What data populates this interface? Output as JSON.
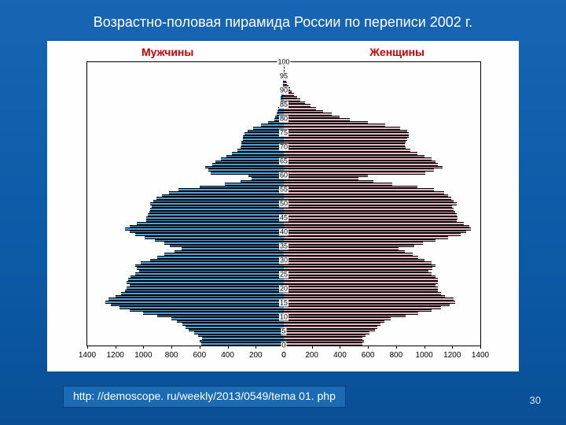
{
  "title": "Возрастно-половая пирамида России по переписи 2002 г.",
  "legend": {
    "male": "Мужчины",
    "female": "Женщины"
  },
  "legend_colors": {
    "male": "#cc0000",
    "female": "#cc0000"
  },
  "source": "http: //demoscope. ru/weekly/2013/0549/tema 01. php",
  "page_number": "30",
  "chart": {
    "type": "population-pyramid",
    "background_color": "#fefefe",
    "male_bar_color": "#4ea3d8",
    "female_bar_color": "#e8b9c2",
    "bar_border_color": "#000000",
    "x_axis": {
      "max": 1400,
      "tick_step": 200,
      "tick_labels_left": [
        "1400",
        "1200",
        "1000",
        "800",
        "600",
        "400",
        "200",
        "0"
      ],
      "tick_labels_right": [
        "0",
        "200",
        "400",
        "600",
        "800",
        "1000",
        "1200",
        "1400"
      ]
    },
    "y_axis": {
      "tick_labels": [
        "0",
        "5",
        "10",
        "15",
        "20",
        "25",
        "30",
        "35",
        "40",
        "45",
        "50",
        "55",
        "60",
        "65",
        "70",
        "75",
        "80",
        "85",
        "90",
        "95",
        "100"
      ]
    },
    "rows": [
      {
        "m": 590,
        "f": 560
      },
      {
        "m": 600,
        "f": 570
      },
      {
        "m": 580,
        "f": 560
      },
      {
        "m": 610,
        "f": 580
      },
      {
        "m": 640,
        "f": 610
      },
      {
        "m": 680,
        "f": 650
      },
      {
        "m": 700,
        "f": 665
      },
      {
        "m": 720,
        "f": 690
      },
      {
        "m": 760,
        "f": 715
      },
      {
        "m": 800,
        "f": 760
      },
      {
        "m": 900,
        "f": 870
      },
      {
        "m": 1000,
        "f": 960
      },
      {
        "m": 1100,
        "f": 1050
      },
      {
        "m": 1170,
        "f": 1120
      },
      {
        "m": 1230,
        "f": 1180
      },
      {
        "m": 1270,
        "f": 1220
      },
      {
        "m": 1250,
        "f": 1210
      },
      {
        "m": 1200,
        "f": 1150
      },
      {
        "m": 1160,
        "f": 1120
      },
      {
        "m": 1130,
        "f": 1100
      },
      {
        "m": 1120,
        "f": 1095
      },
      {
        "m": 1100,
        "f": 1080
      },
      {
        "m": 1120,
        "f": 1100
      },
      {
        "m": 1110,
        "f": 1095
      },
      {
        "m": 1090,
        "f": 1080
      },
      {
        "m": 1060,
        "f": 1055
      },
      {
        "m": 1030,
        "f": 1030
      },
      {
        "m": 1050,
        "f": 1060
      },
      {
        "m": 1060,
        "f": 1080
      },
      {
        "m": 1020,
        "f": 1050
      },
      {
        "m": 950,
        "f": 1000
      },
      {
        "m": 900,
        "f": 960
      },
      {
        "m": 850,
        "f": 920
      },
      {
        "m": 780,
        "f": 860
      },
      {
        "m": 730,
        "f": 820
      },
      {
        "m": 810,
        "f": 930
      },
      {
        "m": 850,
        "f": 990
      },
      {
        "m": 920,
        "f": 1080
      },
      {
        "m": 990,
        "f": 1170
      },
      {
        "m": 1060,
        "f": 1260
      },
      {
        "m": 1100,
        "f": 1300
      },
      {
        "m": 1130,
        "f": 1330
      },
      {
        "m": 1100,
        "f": 1320
      },
      {
        "m": 1050,
        "f": 1280
      },
      {
        "m": 980,
        "f": 1230
      },
      {
        "m": 980,
        "f": 1240
      },
      {
        "m": 970,
        "f": 1230
      },
      {
        "m": 960,
        "f": 1220
      },
      {
        "m": 950,
        "f": 1210
      },
      {
        "m": 940,
        "f": 1200
      },
      {
        "m": 950,
        "f": 1230
      },
      {
        "m": 930,
        "f": 1210
      },
      {
        "m": 910,
        "f": 1190
      },
      {
        "m": 870,
        "f": 1170
      },
      {
        "m": 820,
        "f": 1140
      },
      {
        "m": 750,
        "f": 1070
      },
      {
        "m": 600,
        "f": 950
      },
      {
        "m": 420,
        "f": 770
      },
      {
        "m": 310,
        "f": 640
      },
      {
        "m": 230,
        "f": 530
      },
      {
        "m": 250,
        "f": 600
      },
      {
        "m": 520,
        "f": 1010
      },
      {
        "m": 540,
        "f": 1070
      },
      {
        "m": 560,
        "f": 1130
      },
      {
        "m": 510,
        "f": 1100
      },
      {
        "m": 490,
        "f": 1080
      },
      {
        "m": 450,
        "f": 1050
      },
      {
        "m": 410,
        "f": 1000
      },
      {
        "m": 370,
        "f": 950
      },
      {
        "m": 330,
        "f": 900
      },
      {
        "m": 310,
        "f": 870
      },
      {
        "m": 300,
        "f": 860
      },
      {
        "m": 300,
        "f": 870
      },
      {
        "m": 290,
        "f": 880
      },
      {
        "m": 290,
        "f": 890
      },
      {
        "m": 280,
        "f": 890
      },
      {
        "m": 260,
        "f": 880
      },
      {
        "m": 220,
        "f": 830
      },
      {
        "m": 160,
        "f": 720
      },
      {
        "m": 110,
        "f": 600
      },
      {
        "m": 70,
        "f": 470
      },
      {
        "m": 60,
        "f": 400
      },
      {
        "m": 50,
        "f": 340
      },
      {
        "m": 45,
        "f": 280
      },
      {
        "m": 40,
        "f": 230
      },
      {
        "m": 35,
        "f": 190
      },
      {
        "m": 30,
        "f": 150
      },
      {
        "m": 25,
        "f": 120
      },
      {
        "m": 20,
        "f": 95
      },
      {
        "m": 16,
        "f": 75
      },
      {
        "m": 13,
        "f": 58
      },
      {
        "m": 10,
        "f": 44
      },
      {
        "m": 8,
        "f": 33
      },
      {
        "m": 6,
        "f": 24
      },
      {
        "m": 4,
        "f": 17
      },
      {
        "m": 3,
        "f": 12
      },
      {
        "m": 2,
        "f": 9
      },
      {
        "m": 2,
        "f": 6
      },
      {
        "m": 1,
        "f": 4
      },
      {
        "m": 1,
        "f": 3
      },
      {
        "m": 1,
        "f": 2
      }
    ]
  }
}
